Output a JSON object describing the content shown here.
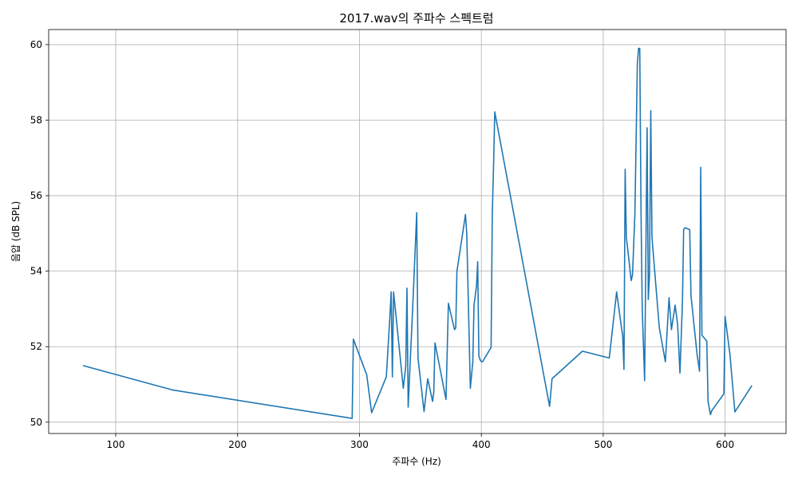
{
  "chart_data": {
    "type": "line",
    "title": "2017.wav의 주파수 스펙트럼",
    "xlabel": "주파수 (Hz)",
    "ylabel": "음압 (dB SPL)",
    "xlim": [
      45,
      650
    ],
    "ylim": [
      49.7,
      60.4
    ],
    "xticks": [
      100,
      200,
      300,
      400,
      500,
      600
    ],
    "yticks": [
      50,
      52,
      54,
      56,
      58,
      60
    ],
    "grid": true,
    "line_color": "#1f77b4",
    "series": [
      {
        "x": [
          73,
          147,
          294,
          295,
          306,
          310,
          322,
          325,
          326,
          327,
          328,
          336,
          338,
          339,
          340,
          344,
          347,
          348,
          353,
          356,
          360,
          361,
          362,
          371,
          373,
          378,
          379,
          380,
          387,
          388,
          391,
          393,
          394,
          396,
          397,
          398,
          399,
          400,
          401,
          408,
          409,
          410,
          411,
          456,
          458,
          483,
          505,
          511,
          515,
          516,
          517,
          518,
          519,
          523,
          524,
          526,
          528,
          529,
          530,
          531,
          532,
          534,
          536,
          537,
          538,
          539,
          540,
          541,
          546,
          551,
          554,
          556,
          559,
          561,
          563,
          565,
          566,
          567,
          571,
          572,
          577,
          579,
          580,
          581,
          585,
          586,
          588,
          589,
          599,
          600,
          604,
          608,
          622
        ],
        "y": [
          51.5,
          50.85,
          50.1,
          52.2,
          51.25,
          50.25,
          51.2,
          52.8,
          53.45,
          51.2,
          53.45,
          50.9,
          51.5,
          53.55,
          50.4,
          53.3,
          55.55,
          51.7,
          50.28,
          51.15,
          50.55,
          50.8,
          52.1,
          50.6,
          53.15,
          52.45,
          52.5,
          54.0,
          55.5,
          55.0,
          50.9,
          51.6,
          53.1,
          53.6,
          54.25,
          51.75,
          51.65,
          51.6,
          51.6,
          51.98,
          55.5,
          56.8,
          58.22,
          50.42,
          51.15,
          51.88,
          51.7,
          53.45,
          52.5,
          52.3,
          51.4,
          56.7,
          54.9,
          53.75,
          53.9,
          55.5,
          59.5,
          59.9,
          59.9,
          55.55,
          53.0,
          51.1,
          57.8,
          53.25,
          53.9,
          58.25,
          54.9,
          54.5,
          52.5,
          51.6,
          53.3,
          52.45,
          53.1,
          52.6,
          51.3,
          53.2,
          55.1,
          55.15,
          55.1,
          53.35,
          51.8,
          51.35,
          56.75,
          52.3,
          52.15,
          50.55,
          50.2,
          50.3,
          50.75,
          52.8,
          51.8,
          50.27,
          50.97
        ]
      }
    ]
  }
}
